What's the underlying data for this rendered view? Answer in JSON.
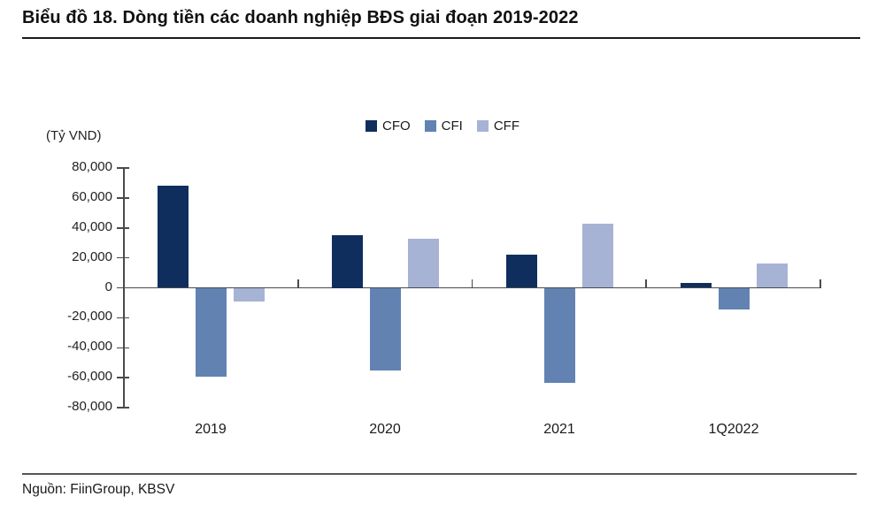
{
  "page": {
    "title": "Biểu đồ 18. Dòng tiền các doanh nghiệp BĐS giai đoạn 2019-2022",
    "source": "Nguồn: FiinGroup, KBSV"
  },
  "chart_data": {
    "type": "bar",
    "title": "Biểu đồ 18. Dòng tiền các doanh nghiệp BĐS giai đoạn 2019-2022",
    "unit_label": "(Tỷ VND)",
    "categories": [
      "2019",
      "2020",
      "2021",
      "1Q2022"
    ],
    "series": [
      {
        "name": "CFO",
        "color": "#0f2e5e",
        "values": [
          68000,
          35000,
          22000,
          3500
        ]
      },
      {
        "name": "CFI",
        "color": "#6282b2",
        "values": [
          -59000,
          -55000,
          -63000,
          -14000
        ]
      },
      {
        "name": "CFF",
        "color": "#a7b3d5",
        "values": [
          -9000,
          33000,
          43000,
          16000
        ]
      }
    ],
    "ylim": [
      -80000,
      80000
    ],
    "y_tick_step": 20000,
    "y_tick_labels": [
      "80,000",
      "60,000",
      "40,000",
      "20,000",
      "0",
      "-20,000",
      "-40,000",
      "-60,000",
      "-80,000"
    ],
    "grid": false,
    "legend_position": "top-center",
    "source": "Nguồn: FiinGroup, KBSV"
  }
}
